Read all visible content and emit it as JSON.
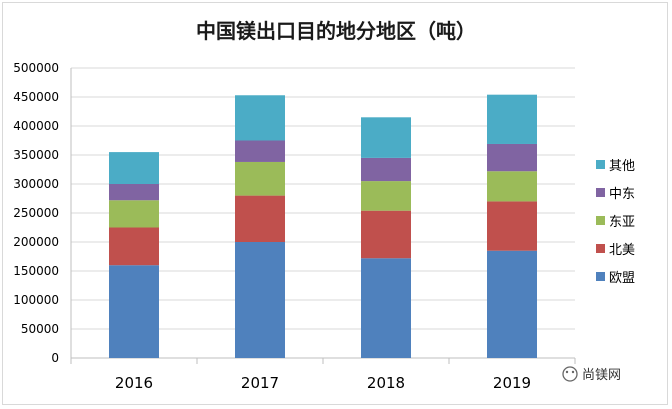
{
  "chart_data": {
    "type": "bar",
    "stacked": true,
    "title": "中国镁出口目的地分地区（吨）",
    "xlabel": "",
    "ylabel": "",
    "categories": [
      "2016",
      "2017",
      "2018",
      "2019"
    ],
    "ylim": [
      0,
      500000
    ],
    "yticks": [
      0,
      50000,
      100000,
      150000,
      200000,
      250000,
      300000,
      350000,
      400000,
      450000,
      500000
    ],
    "grid": true,
    "legend_position": "right",
    "series": [
      {
        "name": "欧盟",
        "color": "#4f81bd",
        "values": [
          160000,
          200000,
          172000,
          185000
        ]
      },
      {
        "name": "北美",
        "color": "#c0504d",
        "values": [
          65000,
          80000,
          82000,
          85000
        ]
      },
      {
        "name": "东亚",
        "color": "#9bbb59",
        "values": [
          47000,
          58000,
          51000,
          52000
        ]
      },
      {
        "name": "中东",
        "color": "#8064a2",
        "values": [
          28000,
          37000,
          40000,
          47000
        ]
      },
      {
        "name": "其他",
        "color": "#4bacc6",
        "values": [
          55000,
          78000,
          70000,
          85000
        ]
      }
    ]
  },
  "watermark": {
    "text": "尚镁网",
    "icon": "wechat-icon"
  }
}
